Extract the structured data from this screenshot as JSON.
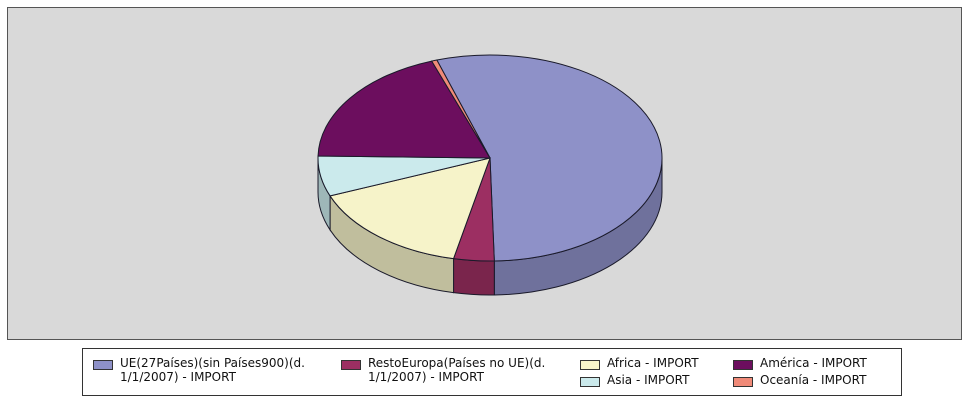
{
  "chart_data": {
    "type": "pie",
    "title": "",
    "legend_position": "bottom",
    "slices": [
      {
        "label": "UE(27Países)(sin Países900)(d. 1/1/2007) - IMPORT",
        "value": 54.6,
        "color": "#8e91c8"
      },
      {
        "label": "RestoEuropa(Países no UE)(d. 1/1/2007) - IMPORT",
        "value": 3.8,
        "color": "#9c2f62"
      },
      {
        "label": "Africa - IMPORT",
        "value": 15.6,
        "color": "#f6f3c9"
      },
      {
        "label": "Asia - IMPORT",
        "value": 6.3,
        "color": "#cbeaec"
      },
      {
        "label": "América - IMPORT",
        "value": 19.2,
        "color": "#6c0e5e"
      },
      {
        "label": "Oceanía - IMPORT",
        "value": 0.5,
        "color": "#f08a78"
      }
    ]
  }
}
